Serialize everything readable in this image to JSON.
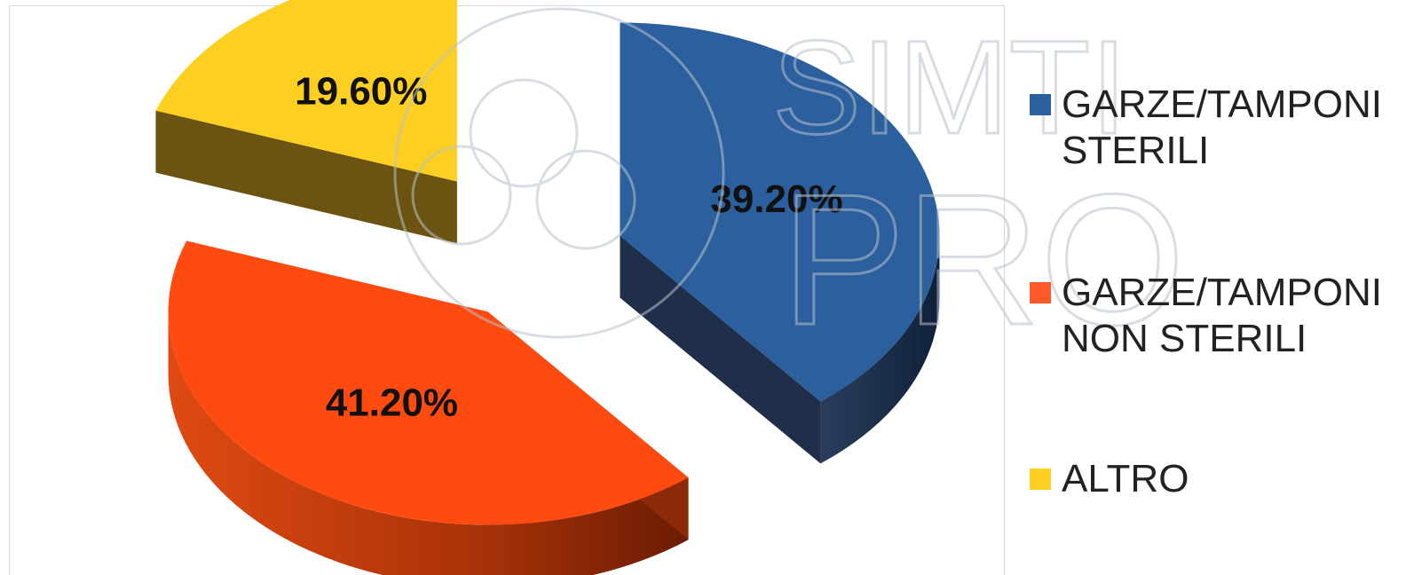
{
  "chart_data": {
    "type": "pie",
    "categories": [
      "GARZE/TAMPONI STERILI",
      "GARZE/TAMPONI NON STERILI",
      "ALTRO"
    ],
    "values": [
      39.2,
      41.2,
      19.6
    ],
    "data_labels": [
      "39.20%",
      "41.20%",
      "19.60%"
    ],
    "colors": [
      "#2B5F9E",
      "#FF4A10",
      "#FCCF20"
    ],
    "side_colors": [
      "#1F2F4A",
      "#8A2A08",
      "#6B5412"
    ],
    "legend_position": "right",
    "exploded": true,
    "three_d": true
  },
  "legend": {
    "items": [
      {
        "label": "GARZE/TAMPONI\nSTERILI",
        "color": "#2B5F9E"
      },
      {
        "label": "GARZE/TAMPONI\nNON STERILI",
        "color": "#FF5A28"
      },
      {
        "label": "ALTRO",
        "color": "#FCCF20"
      }
    ]
  },
  "watermark": {
    "line1": "SIMTI",
    "line2": "PRO"
  }
}
